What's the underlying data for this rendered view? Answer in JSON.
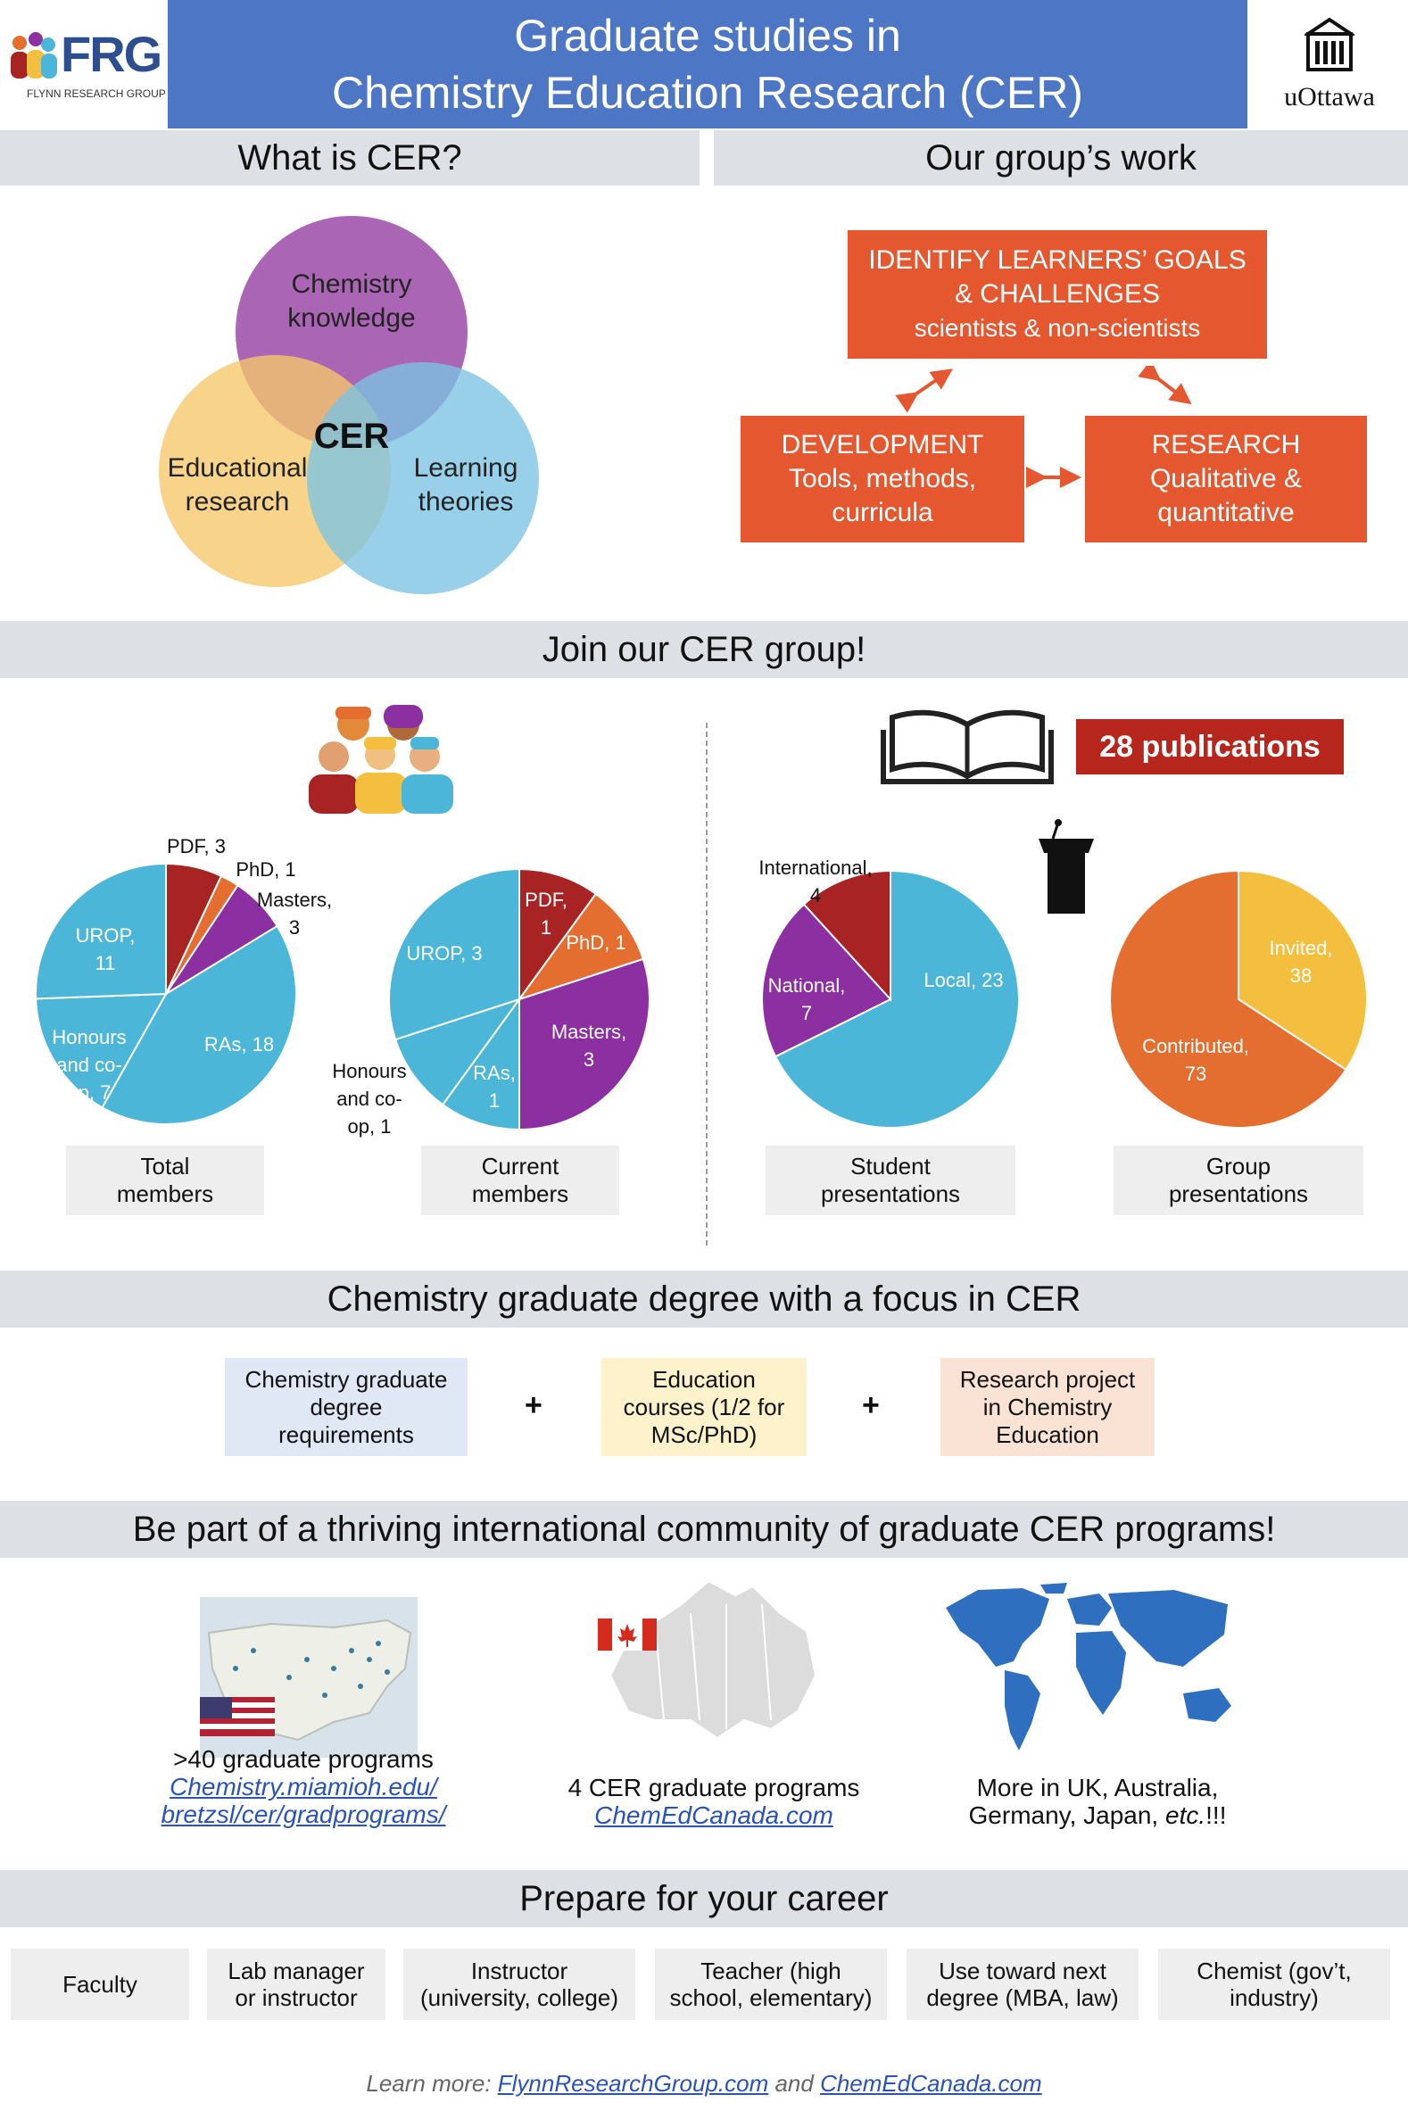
{
  "header": {
    "logo_text": "FRG",
    "logo_subtext": "FLYNN RESEARCH GROUP",
    "title_line1": "Graduate studies in",
    "title_line2": "Chemistry Education Research (CER)",
    "university": "uOttawa"
  },
  "what_is_cer": {
    "heading": "What is CER?",
    "circles": [
      {
        "label": "Chemistry knowledge",
        "line1": "Chemistry",
        "line2": "knowledge",
        "color": "#9b4aa8"
      },
      {
        "label": "Educational research",
        "line1": "Educational",
        "line2": "research",
        "color": "#f6c86a"
      },
      {
        "label": "Learning theories",
        "line1": "Learning",
        "line2": "theories",
        "color": "#7bc3e3"
      }
    ],
    "center": "CER"
  },
  "group_work": {
    "heading": "Our group’s work",
    "boxes": [
      {
        "line1": "IDENTIFY LEARNERS’ GOALS",
        "line2": "& CHALLENGES",
        "line3": "scientists & non-scientists"
      },
      {
        "line1": "DEVELOPMENT",
        "line2": "Tools, methods,",
        "line3": "curricula"
      },
      {
        "line1": "RESEARCH",
        "line2": "Qualitative &",
        "line3": "quantitative"
      }
    ],
    "box_color": "#e4572f"
  },
  "join": {
    "heading": "Join our CER group!",
    "publications": "28 publications",
    "captions": {
      "total": [
        "Total",
        "members"
      ],
      "current": [
        "Current",
        "members"
      ],
      "student": [
        "Student",
        "presentations"
      ],
      "group": [
        "Group",
        "presentations"
      ]
    }
  },
  "chart_data": [
    {
      "type": "pie",
      "title": "Total members",
      "categories": [
        "PDF",
        "PhD",
        "Masters",
        "RAs",
        "Honours and co-op",
        "UROP"
      ],
      "values": [
        3,
        1,
        3,
        18,
        7,
        11
      ],
      "labels": [
        [
          "PDF, 3"
        ],
        [
          "PhD, 1"
        ],
        [
          "Masters,",
          "3"
        ],
        [
          "RAs, 18"
        ],
        [
          "Honours",
          "and co-",
          "op, 7"
        ],
        [
          "UROP,",
          "11"
        ]
      ],
      "colors": [
        "#a82424",
        "#e46e30",
        "#8c2fa0",
        "#4cb6d8",
        "#4cb6d8",
        "#4cb6d8"
      ]
    },
    {
      "type": "pie",
      "title": "Current members",
      "categories": [
        "PDF",
        "PhD",
        "Masters",
        "RAs",
        "Honours and co-op",
        "UROP"
      ],
      "values": [
        1,
        1,
        3,
        1,
        1,
        3
      ],
      "labels": [
        [
          "PDF,",
          "1"
        ],
        [
          "PhD, 1"
        ],
        [
          "Masters,",
          "3"
        ],
        [
          "RAs,",
          "1"
        ],
        [
          "Honours",
          "and co-",
          "op, 1"
        ],
        [
          "UROP, 3"
        ]
      ],
      "colors": [
        "#a82424",
        "#e46e30",
        "#8c2fa0",
        "#4cb6d8",
        "#4cb6d8",
        "#4cb6d8"
      ]
    },
    {
      "type": "pie",
      "title": "Student presentations",
      "categories": [
        "Local",
        "National",
        "International"
      ],
      "values": [
        23,
        7,
        4
      ],
      "labels": [
        [
          "Local, 23"
        ],
        [
          "National,",
          "7"
        ],
        [
          "International,",
          "4"
        ]
      ],
      "colors": [
        "#4cb6d8",
        "#8c2fa0",
        "#a82424"
      ]
    },
    {
      "type": "pie",
      "title": "Group presentations",
      "categories": [
        "Invited",
        "Contributed"
      ],
      "values": [
        38,
        73
      ],
      "labels": [
        [
          "Invited,",
          "38"
        ],
        [
          "Contributed,",
          "73"
        ]
      ],
      "colors": [
        "#f4bf3e",
        "#e46e30"
      ]
    }
  ],
  "degree": {
    "heading": "Chemistry graduate degree with a focus in CER",
    "items": [
      {
        "lines": [
          "Chemistry graduate",
          "degree",
          "requirements"
        ],
        "color": "#dfe8f4"
      },
      {
        "lines": [
          "Education",
          "courses (1/2 for",
          "MSc/PhD)"
        ],
        "color": "#fdf2cc"
      },
      {
        "lines": [
          "Research project",
          "in Chemistry",
          "Education"
        ],
        "color": "#fae3d5"
      }
    ],
    "plus": "+"
  },
  "community": {
    "heading": "Be part of a thriving international community of graduate CER programs!",
    "us": {
      "line1": ">40 graduate programs",
      "link1": "Chemistry.miamioh.edu/",
      "link2": "bretzsl/cer/gradprograms/"
    },
    "canada": {
      "line1": "4 CER graduate programs",
      "link1": "ChemEdCanada.com"
    },
    "world": {
      "line1": "More in UK, Australia,",
      "line2a": "Germany, Japan, ",
      "line2b": "etc.",
      "line2c": "!!!"
    }
  },
  "career": {
    "heading": "Prepare for your career",
    "items": [
      {
        "lines": [
          "Faculty"
        ]
      },
      {
        "lines": [
          "Lab manager",
          "or instructor"
        ]
      },
      {
        "lines": [
          "Instructor",
          "(university, college)"
        ]
      },
      {
        "lines": [
          "Teacher (high",
          "school, elementary)"
        ]
      },
      {
        "lines": [
          "Use toward next",
          "degree (MBA, law)"
        ]
      },
      {
        "lines": [
          "Chemist (gov’t,",
          "industry)"
        ]
      }
    ]
  },
  "footer": {
    "prefix": "Learn more: ",
    "link1": "FlynnResearchGroup.com",
    "mid": " and ",
    "link2": "ChemEdCanada.com"
  }
}
